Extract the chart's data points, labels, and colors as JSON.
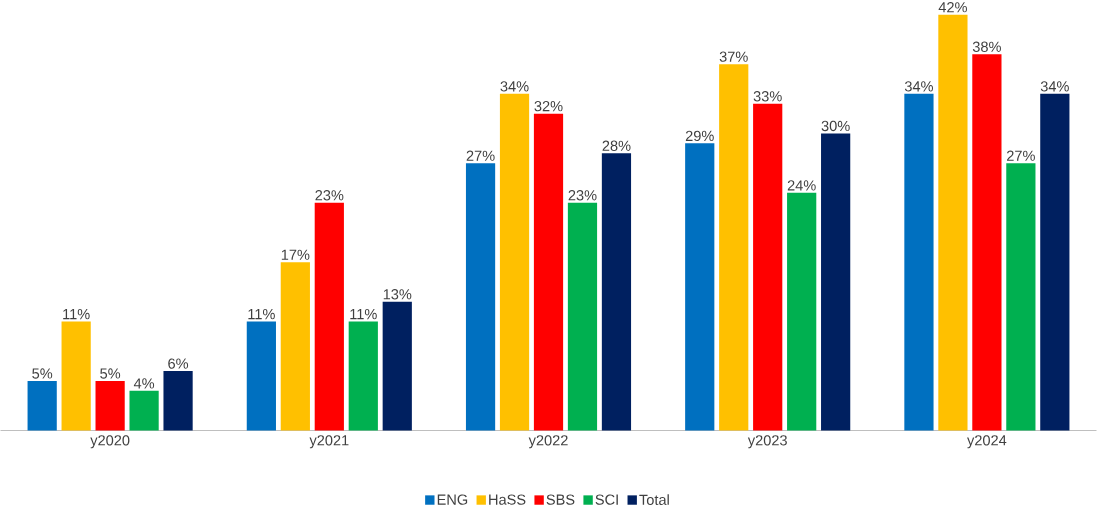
{
  "chart_data": {
    "type": "bar",
    "categories": [
      "y2020",
      "y2021",
      "y2022",
      "y2023",
      "y2024"
    ],
    "series": [
      {
        "name": "ENG",
        "color": "#0070c0",
        "values": [
          5,
          11,
          27,
          29,
          34
        ],
        "value_labels": [
          "5%",
          "11%",
          "27%",
          "29%",
          "34%"
        ]
      },
      {
        "name": "HaSS",
        "color": "#ffc000",
        "values": [
          11,
          17,
          34,
          37,
          42
        ],
        "value_labels": [
          "11%",
          "17%",
          "34%",
          "37%",
          "42%"
        ]
      },
      {
        "name": "SBS",
        "color": "#ff0000",
        "values": [
          5,
          23,
          32,
          33,
          38
        ],
        "value_labels": [
          "5%",
          "23%",
          "32%",
          "33%",
          "38%"
        ]
      },
      {
        "name": "SCI",
        "color": "#00b050",
        "values": [
          4,
          11,
          23,
          24,
          27
        ],
        "value_labels": [
          "4%",
          "11%",
          "23%",
          "24%",
          "27%"
        ]
      },
      {
        "name": "Total",
        "color": "#002060",
        "values": [
          6,
          13,
          28,
          30,
          34
        ],
        "value_labels": [
          "6%",
          "13%",
          "28%",
          "30%",
          "34%"
        ]
      }
    ],
    "legend": "bottom"
  }
}
